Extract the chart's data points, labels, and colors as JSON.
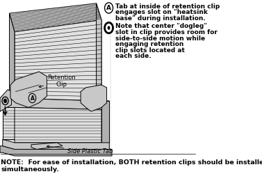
{
  "bg_color": "#ffffff",
  "note_text": "NOTE:  For ease of installation, BOTH retention clips should be installed\nsimultaneously.",
  "annot_A_line1": "Tab at inside of retention clip",
  "annot_A_line2": "engages slot on \"heatsink",
  "annot_A_line3": "base\" during installation.",
  "annot_B_line1": "Note that center \"dogleg\"",
  "annot_B_line2": "slot in clip provides room for",
  "annot_B_line3": "side-to-side motion while",
  "annot_B_line4": "engaging retention",
  "annot_B_line5": "clip slots located at",
  "annot_B_line6": "each side.",
  "label_ret_clip": "Retention\nClip",
  "label_side_tab": "Side Plastic Tab",
  "dc": "#000000",
  "gray1": "#e0e0e0",
  "gray2": "#c8c8c8",
  "gray3": "#b0b0b0",
  "gray4": "#d8d8d8",
  "annot_fs": 6.5,
  "note_fs": 6.8,
  "label_fs": 6.0
}
